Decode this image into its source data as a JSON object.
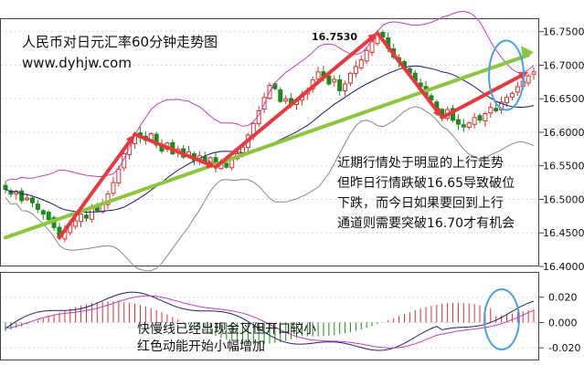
{
  "title": "人民币对日元汇率60分钟走势图",
  "website": "www.dyhjw.com",
  "peak_label": "16.7530",
  "main_note": [
    "近期行情处于明显的上行走势",
    "但昨日行情跌破16.65导致破位",
    "下跌，而今日如果要回到上行",
    "通道则需要突破16.70才有机会"
  ],
  "macd_note": [
    "快慢线已经出现金叉但开口较小",
    "红色动能开始小幅增加"
  ],
  "colors": {
    "bull": "#d63030",
    "bear": "#1d8a1d",
    "arrow": "#e8383e",
    "trendline": "#8cc63f",
    "upper_band": "#c040c0",
    "lower_band": "#888888",
    "mid_line": "#1a1a6e",
    "circle": "#4aa3e0"
  },
  "chart_data": [
    {
      "type": "candlestick",
      "ylim": [
        16.4,
        16.77
      ],
      "yticks": [
        "16.7500",
        "16.7000",
        "16.6500",
        "16.6000",
        "16.5500",
        "16.5000",
        "16.4500",
        "16.4000"
      ],
      "ytick_values": [
        16.75,
        16.7,
        16.65,
        16.6,
        16.55,
        16.5,
        16.45,
        16.4
      ],
      "annotations": [
        "16.7530"
      ],
      "close": [
        16.515,
        16.508,
        16.512,
        16.498,
        16.502,
        16.495,
        16.485,
        16.478,
        16.47,
        16.458,
        16.443,
        16.452,
        16.462,
        16.468,
        16.478,
        16.472,
        16.487,
        16.483,
        16.495,
        16.508,
        16.525,
        16.545,
        16.568,
        16.585,
        16.597,
        16.592,
        16.588,
        16.598,
        16.581,
        16.572,
        16.584,
        16.568,
        16.575,
        16.563,
        16.571,
        16.558,
        16.565,
        16.556,
        16.562,
        16.548,
        16.555,
        16.548,
        16.559,
        16.568,
        16.578,
        16.596,
        16.613,
        16.632,
        16.652,
        16.67,
        16.665,
        16.646,
        16.65,
        16.642,
        16.647,
        16.656,
        16.662,
        16.678,
        16.69,
        16.682,
        16.672,
        16.679,
        16.662,
        16.672,
        16.688,
        16.698,
        16.708,
        16.722,
        16.735,
        16.748,
        16.742,
        16.725,
        16.712,
        16.705,
        16.695,
        16.688,
        16.676,
        16.668,
        16.655,
        16.648,
        16.632,
        16.622,
        16.634,
        16.618,
        16.612,
        16.608,
        16.614,
        16.622,
        16.618,
        16.628,
        16.637,
        16.632,
        16.645,
        16.652,
        16.658,
        16.668,
        16.676,
        16.684,
        16.69
      ]
    },
    {
      "type": "macd",
      "ylim": [
        -0.03,
        0.04
      ],
      "yticks": [
        "0.020",
        "0.000",
        "-0.020"
      ],
      "ytick_values": [
        0.02,
        0.0,
        -0.02
      ]
    }
  ]
}
